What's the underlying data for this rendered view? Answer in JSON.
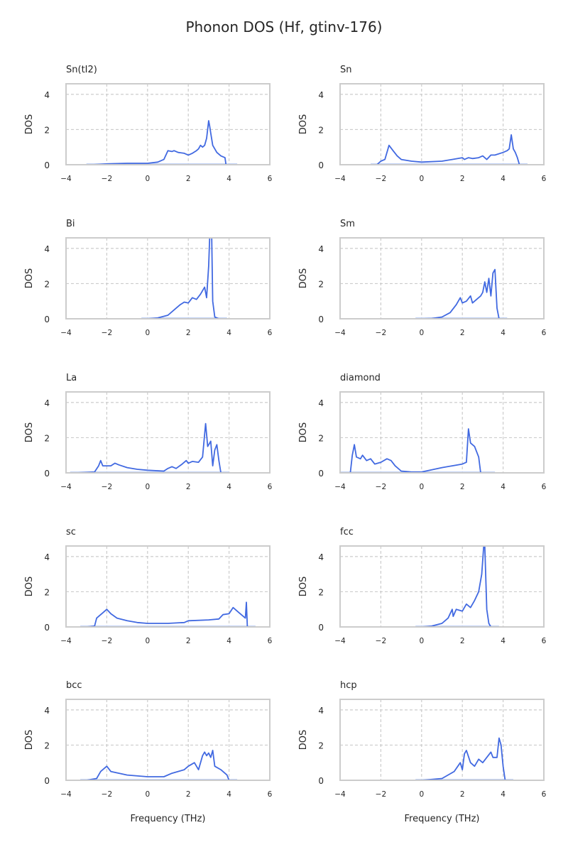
{
  "chart_data": {
    "type": "line",
    "title": "Phonon DOS (Hf, gtinv-176)",
    "xlabel": "Frequency (THz)",
    "ylabel": "DOS",
    "xlim": [
      -4,
      6
    ],
    "ylim": [
      0,
      4.6
    ],
    "xticks": [
      -4,
      -2,
      0,
      2,
      4,
      6
    ],
    "yticks": [
      0,
      2,
      4
    ],
    "grid": true,
    "line_color": "#4169e1",
    "panels": [
      {
        "name": "Sn(tI2)",
        "x": [
          -2.7,
          -2,
          -1,
          0,
          0.5,
          0.8,
          1.0,
          1.2,
          1.3,
          1.5,
          1.8,
          2.0,
          2.2,
          2.4,
          2.5,
          2.6,
          2.7,
          2.8,
          2.9,
          3.0,
          3.05,
          3.1,
          3.2,
          3.4,
          3.6,
          3.8,
          3.85,
          4.0
        ],
        "y": [
          0,
          0.05,
          0.08,
          0.08,
          0.15,
          0.3,
          0.8,
          0.75,
          0.8,
          0.7,
          0.65,
          0.55,
          0.65,
          0.8,
          0.9,
          1.1,
          1.0,
          1.1,
          1.5,
          2.5,
          2.2,
          1.8,
          1.1,
          0.7,
          0.5,
          0.4,
          0,
          0
        ]
      },
      {
        "name": "Sn",
        "x": [
          -2.2,
          -2,
          -1.8,
          -1.6,
          -1.4,
          -1.2,
          -1,
          -0.5,
          0,
          1,
          1.5,
          2,
          2.1,
          2.3,
          2.5,
          2.8,
          3,
          3.2,
          3.4,
          3.6,
          4,
          4.2,
          4.3,
          4.4,
          4.5,
          4.6,
          4.7,
          4.8
        ],
        "y": [
          0,
          0.2,
          0.3,
          1.1,
          0.8,
          0.5,
          0.3,
          0.2,
          0.15,
          0.2,
          0.3,
          0.4,
          0.3,
          0.4,
          0.35,
          0.4,
          0.5,
          0.3,
          0.55,
          0.55,
          0.7,
          0.8,
          0.9,
          1.7,
          0.9,
          0.7,
          0.4,
          0
        ]
      },
      {
        "name": "Bi",
        "x": [
          0,
          0.5,
          1,
          1.3,
          1.6,
          1.8,
          2,
          2.2,
          2.4,
          2.6,
          2.8,
          2.9,
          3.0,
          3.05,
          3.15,
          3.2,
          3.3,
          3.5
        ],
        "y": [
          0,
          0.05,
          0.2,
          0.5,
          0.8,
          0.95,
          0.9,
          1.2,
          1.1,
          1.4,
          1.8,
          1.2,
          3.0,
          4.6,
          4.6,
          1.0,
          0.1,
          0
        ]
      },
      {
        "name": "Sm",
        "x": [
          0,
          0.5,
          1,
          1.4,
          1.7,
          1.9,
          2,
          2.2,
          2.4,
          2.5,
          2.7,
          2.9,
          3.0,
          3.1,
          3.2,
          3.3,
          3.4,
          3.5,
          3.6,
          3.7,
          3.8
        ],
        "y": [
          0,
          0.02,
          0.1,
          0.35,
          0.8,
          1.2,
          0.9,
          1.0,
          1.3,
          0.9,
          1.1,
          1.3,
          1.5,
          2.1,
          1.5,
          2.3,
          1.3,
          2.6,
          2.8,
          0.6,
          0
        ]
      },
      {
        "name": "La",
        "x": [
          -3.5,
          -2.6,
          -2.4,
          -2.3,
          -2.2,
          -2,
          -1.8,
          -1.6,
          -1.4,
          -1,
          -0.5,
          0,
          0.8,
          1,
          1.2,
          1.4,
          1.7,
          1.9,
          2.0,
          2.2,
          2.5,
          2.7,
          2.85,
          2.95,
          3.1,
          3.2,
          3.3,
          3.4,
          3.5,
          3.6
        ],
        "y": [
          0,
          0.05,
          0.4,
          0.7,
          0.4,
          0.4,
          0.4,
          0.55,
          0.45,
          0.3,
          0.2,
          0.15,
          0.1,
          0.25,
          0.35,
          0.25,
          0.5,
          0.7,
          0.55,
          0.65,
          0.6,
          0.9,
          2.8,
          1.5,
          1.8,
          0.4,
          1.3,
          1.6,
          0.7,
          0
        ]
      },
      {
        "name": "diamond",
        "x": [
          -4,
          -3.5,
          -3.4,
          -3.3,
          -3.2,
          -3.0,
          -2.9,
          -2.7,
          -2.5,
          -2.3,
          -2.0,
          -1.7,
          -1.5,
          -1.3,
          -1,
          -0.5,
          0,
          1,
          1.5,
          2,
          2.2,
          2.3,
          2.4,
          2.6,
          2.8,
          2.9,
          3.2
        ],
        "y": [
          0,
          0,
          1.0,
          1.6,
          0.9,
          0.8,
          1.0,
          0.7,
          0.8,
          0.5,
          0.6,
          0.8,
          0.7,
          0.4,
          0.1,
          0.05,
          0.05,
          0.3,
          0.4,
          0.5,
          0.6,
          2.5,
          1.7,
          1.5,
          0.9,
          0,
          0
        ]
      },
      {
        "name": "sc",
        "x": [
          -3,
          -2.6,
          -2.5,
          -2.2,
          -2,
          -1.8,
          -1.5,
          -1,
          -0.5,
          0,
          1,
          1.8,
          2,
          3,
          3.5,
          3.7,
          4,
          4.2,
          4.5,
          4.8,
          4.85,
          4.9
        ],
        "y": [
          0,
          0.05,
          0.5,
          0.8,
          1.0,
          0.75,
          0.5,
          0.35,
          0.25,
          0.2,
          0.2,
          0.25,
          0.35,
          0.4,
          0.45,
          0.7,
          0.75,
          1.1,
          0.8,
          0.5,
          1.4,
          0
        ]
      },
      {
        "name": "fcc",
        "x": [
          0,
          0.5,
          1,
          1.3,
          1.5,
          1.55,
          1.7,
          2,
          2.2,
          2.4,
          2.6,
          2.8,
          2.95,
          3.05,
          3.1,
          3.2,
          3.3,
          3.4
        ],
        "y": [
          0,
          0.05,
          0.2,
          0.5,
          1.0,
          0.6,
          1.0,
          0.9,
          1.3,
          1.1,
          1.5,
          2.0,
          3.0,
          4.6,
          4.6,
          1.0,
          0.2,
          0
        ]
      },
      {
        "name": "bcc",
        "x": [
          -3,
          -2.5,
          -2.3,
          -2,
          -1.8,
          -1,
          0,
          0.8,
          1.2,
          1.8,
          2,
          2.3,
          2.5,
          2.7,
          2.8,
          2.9,
          3.0,
          3.1,
          3.2,
          3.3,
          3.6,
          3.9,
          4
        ],
        "y": [
          0,
          0.1,
          0.5,
          0.8,
          0.5,
          0.3,
          0.2,
          0.2,
          0.4,
          0.6,
          0.8,
          1.0,
          0.6,
          1.4,
          1.6,
          1.4,
          1.55,
          1.3,
          1.7,
          0.8,
          0.6,
          0.3,
          0
        ]
      },
      {
        "name": "hcp",
        "x": [
          0,
          1,
          1.6,
          1.9,
          2.0,
          2.1,
          2.2,
          2.4,
          2.6,
          2.8,
          3,
          3.2,
          3.4,
          3.5,
          3.7,
          3.8,
          3.9,
          4.0,
          4.1
        ],
        "y": [
          0,
          0.1,
          0.5,
          1.0,
          0.6,
          1.5,
          1.7,
          1.0,
          0.8,
          1.2,
          1.0,
          1.3,
          1.6,
          1.3,
          1.3,
          2.4,
          2.0,
          0.8,
          0
        ]
      }
    ]
  }
}
